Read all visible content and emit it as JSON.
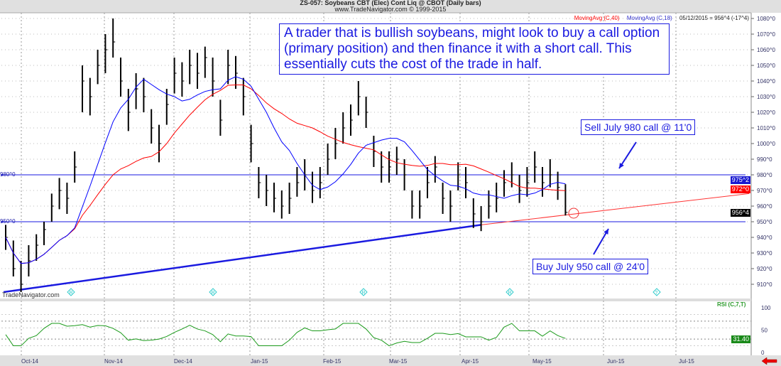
{
  "header": {
    "title": "ZS-057:  Soybeans CBT (Elec) Cont Liq @ CBOT  (Daily bars)",
    "copyright": "www.TradeNavigator.com © 1999-2015",
    "ma40_label": "MovingAvg (C,40)",
    "ma18_label": "MovingAvg (C,18)",
    "last_quote": "05/12/2015 = 956^4 (-17^4)"
  },
  "annotation": "A trader that is bullish soybeans, might look to buy a call option (primary position) and then finance it with a short call. This essentially cuts the cost of the trade in half.",
  "sell_label": "Sell July 980 call @ 11'0",
  "buy_label": "Buy July 950 call @ 24'0",
  "watermark": "TradeNavigator.com",
  "level_labels": {
    "upper": "980^0",
    "lower": "950^0"
  },
  "price_tags": {
    "ma18": "975^2",
    "ma40": "972^0",
    "last": "956^4"
  },
  "rsi_label": "RSI (C,7,T)",
  "rsi_last": "31.40",
  "colors": {
    "ma40": "#ff0000",
    "ma18": "#0000ff",
    "rsi": "#1a9a1a",
    "accent": "#1010e0",
    "header_bg": "#e0e0e0"
  },
  "chart_data": {
    "type": "ohlc-bar",
    "y_ticks": [
      "1080^0",
      "1070^0",
      "1060^0",
      "1050^0",
      "1040^0",
      "1030^0",
      "1020^0",
      "1010^0",
      "1000^0",
      "990^0",
      "980^0",
      "970^0",
      "960^0",
      "950^0",
      "940^0",
      "930^0",
      "920^0",
      "910^0"
    ],
    "ylim": [
      905,
      1082
    ],
    "x_ticks": [
      "Oct-14",
      "Nov-14",
      "Dec-14",
      "Jan-15",
      "Feb-15",
      "Mar-15",
      "Apr-15",
      "May-15",
      "Jun-15",
      "Jul-15"
    ],
    "bars_hlc": [
      [
        948,
        932,
        940
      ],
      [
        938,
        915,
        920
      ],
      [
        925,
        905,
        910
      ],
      [
        935,
        915,
        925
      ],
      [
        942,
        925,
        935
      ],
      [
        950,
        935,
        945
      ],
      [
        968,
        950,
        960
      ],
      [
        978,
        958,
        970
      ],
      [
        975,
        955,
        965
      ],
      [
        995,
        975,
        985
      ],
      [
        1050,
        1020,
        1040
      ],
      [
        1042,
        1018,
        1030
      ],
      [
        1060,
        1038,
        1050
      ],
      [
        1070,
        1045,
        1060
      ],
      [
        1080,
        1055,
        1065
      ],
      [
        1055,
        1030,
        1040
      ],
      [
        1035,
        1008,
        1020
      ],
      [
        1045,
        1022,
        1035
      ],
      [
        1042,
        1020,
        1030
      ],
      [
        1022,
        1000,
        1010
      ],
      [
        1012,
        988,
        1000
      ],
      [
        1035,
        1012,
        1025
      ],
      [
        1055,
        1032,
        1045
      ],
      [
        1052,
        1030,
        1040
      ],
      [
        1060,
        1038,
        1050
      ],
      [
        1058,
        1035,
        1045
      ],
      [
        1062,
        1042,
        1055
      ],
      [
        1055,
        1030,
        1040
      ],
      [
        1028,
        1005,
        1015
      ],
      [
        1060,
        1038,
        1050
      ],
      [
        1056,
        1035,
        1045
      ],
      [
        1042,
        1018,
        1030
      ],
      [
        1012,
        988,
        1000
      ],
      [
        985,
        965,
        975
      ],
      [
        980,
        960,
        970
      ],
      [
        975,
        956,
        965
      ],
      [
        970,
        952,
        960
      ],
      [
        975,
        955,
        965
      ],
      [
        985,
        966,
        975
      ],
      [
        990,
        970,
        980
      ],
      [
        982,
        962,
        970
      ],
      [
        985,
        965,
        975
      ],
      [
        1000,
        980,
        990
      ],
      [
        1010,
        990,
        1000
      ],
      [
        1020,
        1000,
        1010
      ],
      [
        1025,
        1005,
        1015
      ],
      [
        1040,
        1018,
        1030
      ],
      [
        1030,
        1010,
        1020
      ],
      [
        1005,
        985,
        995
      ],
      [
        995,
        975,
        985
      ],
      [
        995,
        975,
        985
      ],
      [
        998,
        980,
        990
      ],
      [
        990,
        970,
        980
      ],
      [
        970,
        952,
        960
      ],
      [
        970,
        952,
        960
      ],
      [
        985,
        965,
        975
      ],
      [
        992,
        975,
        985
      ],
      [
        975,
        955,
        965
      ],
      [
        970,
        950,
        960
      ],
      [
        988,
        970,
        980
      ],
      [
        985,
        965,
        975
      ],
      [
        965,
        946,
        955
      ],
      [
        960,
        944,
        950
      ],
      [
        970,
        952,
        960
      ],
      [
        975,
        956,
        965
      ],
      [
        983,
        966,
        975
      ],
      [
        988,
        972,
        980
      ],
      [
        980,
        962,
        970
      ],
      [
        985,
        966,
        975
      ],
      [
        995,
        975,
        985
      ],
      [
        985,
        966,
        975
      ],
      [
        990,
        972,
        980
      ],
      [
        982,
        964,
        972
      ],
      [
        974,
        954,
        956
      ]
    ],
    "ma_periods": [
      40,
      18
    ],
    "rsi": {
      "period": 7,
      "ylim": [
        0,
        100
      ],
      "y_ticks": [
        "100",
        "50",
        "0"
      ],
      "last": 31.4
    },
    "levels": [
      980,
      950
    ],
    "trendline": {
      "from": [
        0,
        905
      ],
      "to": [
        62,
        948
      ],
      "extends_to": 968
    }
  }
}
